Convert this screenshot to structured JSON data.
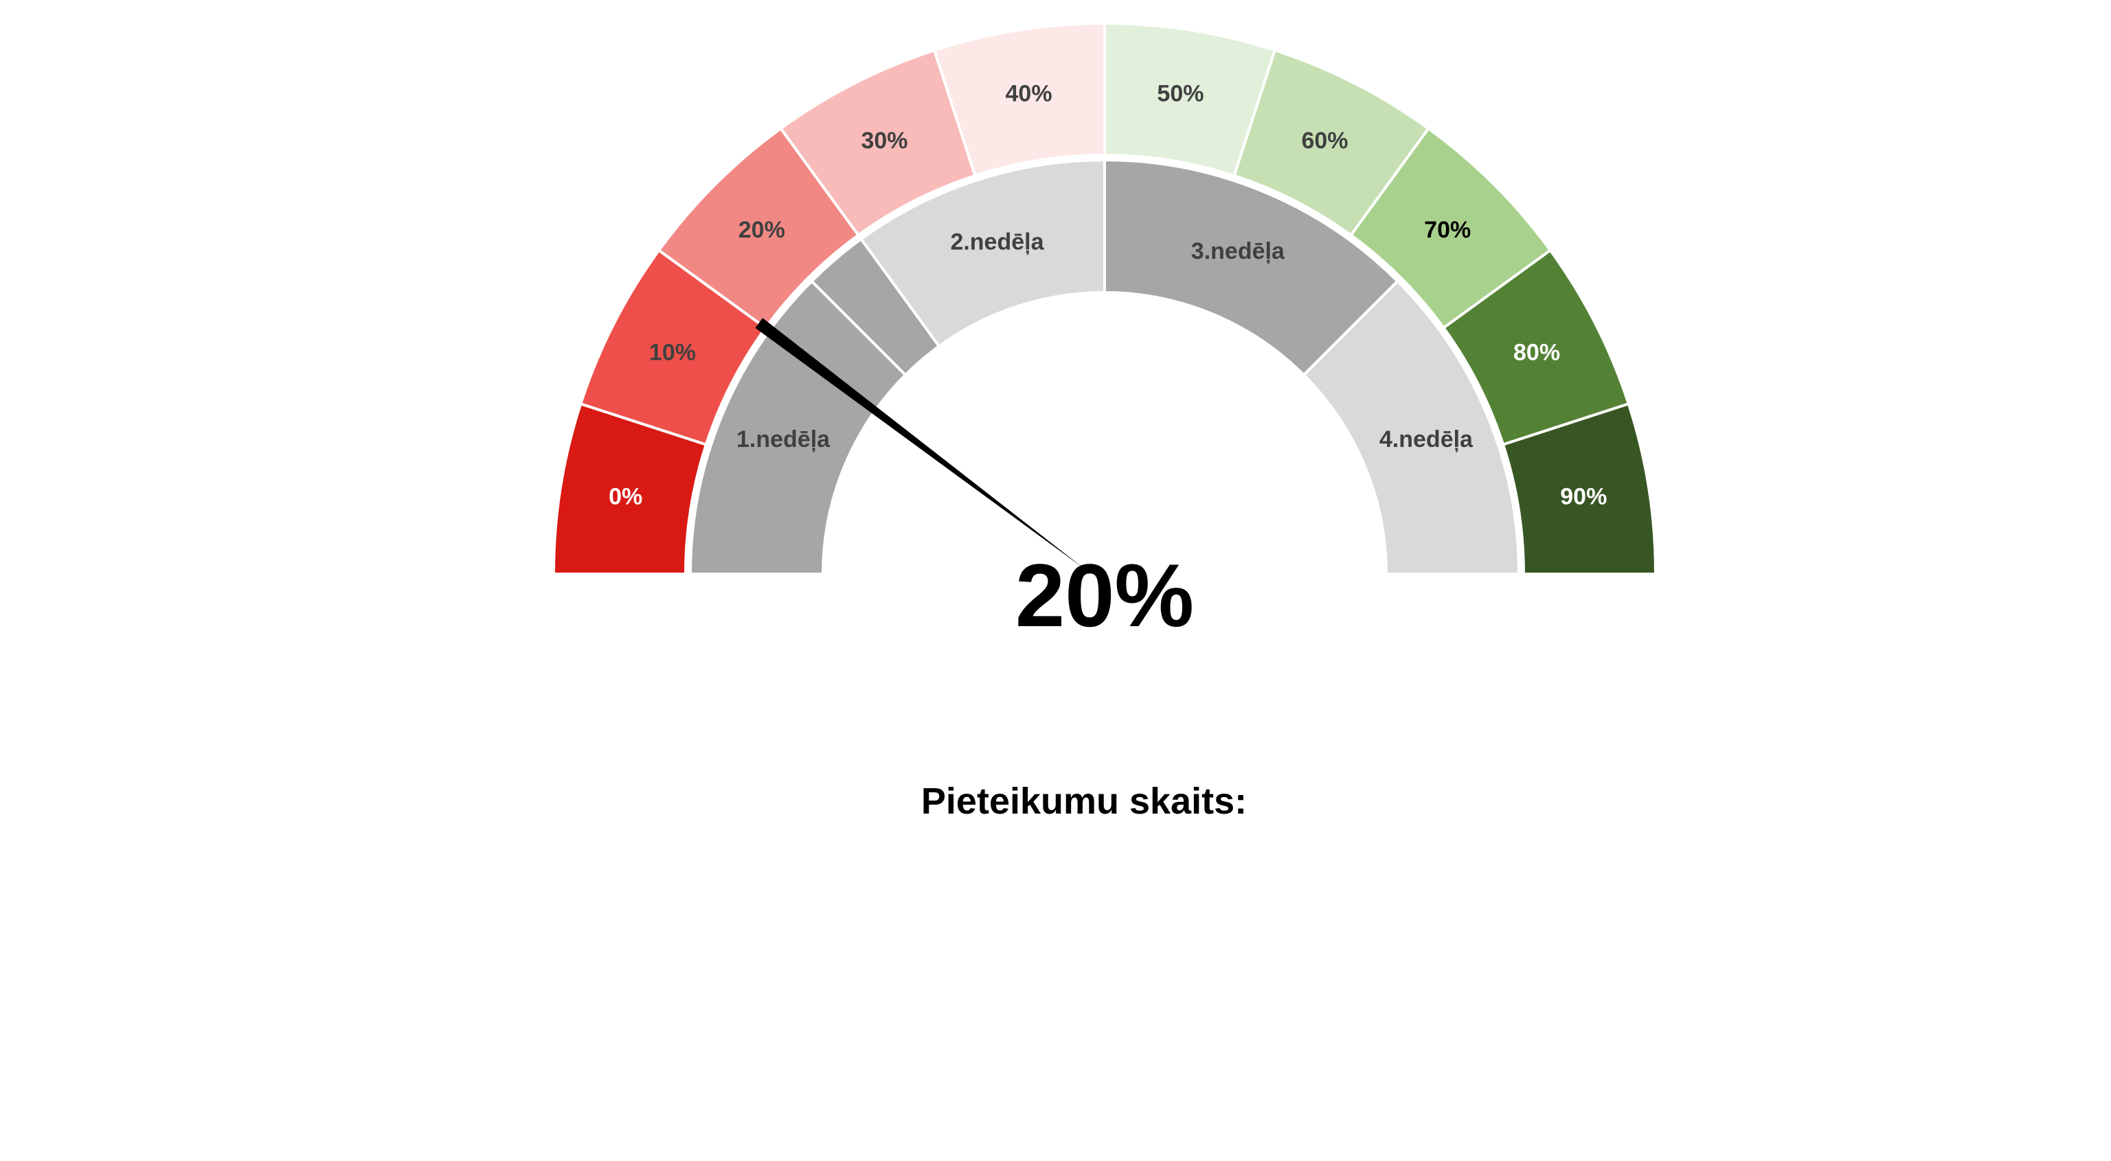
{
  "chart_data": {
    "type": "gauge",
    "value": 20,
    "value_label": "20%",
    "footer_label": "Pieteikumu skaits:",
    "outer_ring": {
      "segments": [
        {
          "label": "0%",
          "color": "#D91A14",
          "text_color": "#FFFFFF"
        },
        {
          "label": "10%",
          "color": "#EF4F4A",
          "text_color": "#404040"
        },
        {
          "label": "20%",
          "color": "#F28884",
          "text_color": "#404040"
        },
        {
          "label": "30%",
          "color": "#F8BBB9",
          "text_color": "#404040"
        },
        {
          "label": "40%",
          "color": "#FDE8E8",
          "text_color": "#404040"
        },
        {
          "label": "50%",
          "color": "#E2EFDA",
          "text_color": "#404040"
        },
        {
          "label": "60%",
          "color": "#C6E0B4",
          "text_color": "#404040"
        },
        {
          "label": "70%",
          "color": "#A9D18E",
          "text_color": "#000000"
        },
        {
          "label": "80%",
          "color": "#548235",
          "text_color": "#FFFFFF"
        },
        {
          "label": "90%",
          "color": "#375623",
          "text_color": "#FFFFFF"
        }
      ]
    },
    "inner_ring": {
      "segments": [
        {
          "label": "1.nedēļa",
          "start": 0,
          "end": 25,
          "color": "#A6A6A6",
          "text_color": "#404040",
          "show_label": true
        },
        {
          "label": "",
          "start": 25,
          "end": 30,
          "color": "#A6A6A6",
          "text_color": "#404040",
          "show_label": false
        },
        {
          "label": "2.nedēļa",
          "start": 30,
          "end": 50,
          "color": "#D9D9D9",
          "text_color": "#404040",
          "show_label": true
        },
        {
          "label": "3.nedēļa",
          "start": 50,
          "end": 75,
          "color": "#A6A6A6",
          "text_color": "#404040",
          "show_label": true
        },
        {
          "label": "4.nedēļa",
          "start": 75,
          "end": 100,
          "color": "#D9D9D9",
          "text_color": "#404040",
          "show_label": true
        }
      ]
    },
    "needle_color": "#000000",
    "range": [
      0,
      100
    ]
  }
}
